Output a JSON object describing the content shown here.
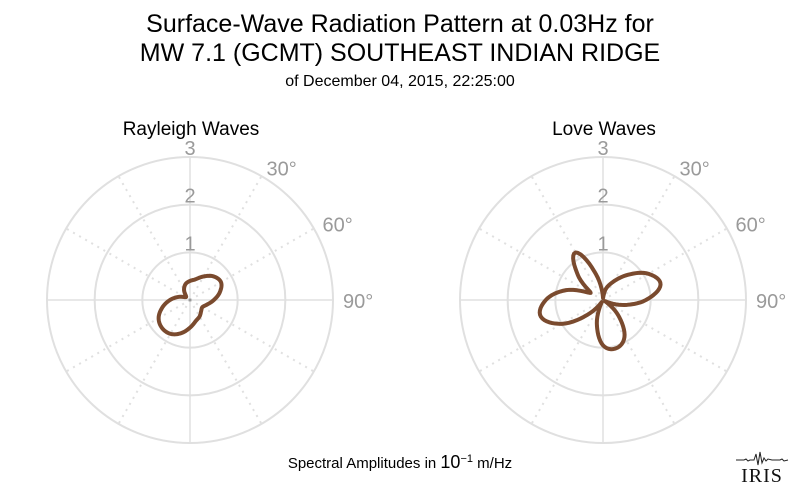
{
  "header": {
    "title_line1": "Surface-Wave Radiation Pattern at 0.03Hz for",
    "title_line2": "MW 7.1 (GCMT) SOUTHEAST INDIAN RIDGE",
    "subtitle": "of December 04, 2015, 22:25:00"
  },
  "footer": {
    "prefix": "Spectral Amplitudes in ",
    "base": "10",
    "exponent": "−1",
    "unit": " m/Hz"
  },
  "logo": {
    "text": "IRIS"
  },
  "colors": {
    "pattern": "#7a4a2e",
    "grid": "#e0e0e0",
    "label": "#9a9a9a"
  },
  "chart_data": [
    {
      "type": "polar",
      "title": "Rayleigh Waves",
      "radial_ticks": [
        "1",
        "2",
        "3"
      ],
      "rmax": 3,
      "angle_labels": [
        "30°",
        "60°",
        "90°"
      ],
      "grid": true,
      "theta_deg": [
        0,
        15,
        30,
        45,
        60,
        75,
        90,
        105,
        120,
        135,
        150,
        165,
        180,
        195,
        210,
        225,
        240,
        255,
        270,
        285,
        300,
        315,
        330,
        345
      ],
      "values": [
        0.4,
        0.45,
        0.57,
        0.7,
        0.75,
        0.65,
        0.5,
        0.37,
        0.3,
        0.33,
        0.4,
        0.46,
        0.58,
        0.72,
        0.82,
        0.83,
        0.76,
        0.6,
        0.42,
        0.25,
        0.12,
        0.12,
        0.25,
        0.35
      ]
    },
    {
      "type": "polar",
      "title": "Love Waves",
      "radial_ticks": [
        "1",
        "2",
        "3"
      ],
      "rmax": 3,
      "angle_labels": [
        "30°",
        "60°",
        "90°"
      ],
      "grid": true,
      "theta_deg": [
        0,
        15,
        30,
        45,
        60,
        75,
        90,
        105,
        120,
        135,
        150,
        165,
        180,
        195,
        210,
        225,
        240,
        255,
        270,
        285,
        300,
        315,
        330,
        345
      ],
      "values": [
        0.05,
        0.25,
        0.45,
        0.75,
        1.1,
        1.25,
        0.9,
        0.4,
        0.05,
        0.45,
        0.9,
        1.05,
        0.95,
        0.5,
        0.05,
        0.4,
        1.0,
        1.35,
        1.2,
        0.8,
        0.3,
        0.75,
        1.15,
        0.55
      ]
    }
  ]
}
